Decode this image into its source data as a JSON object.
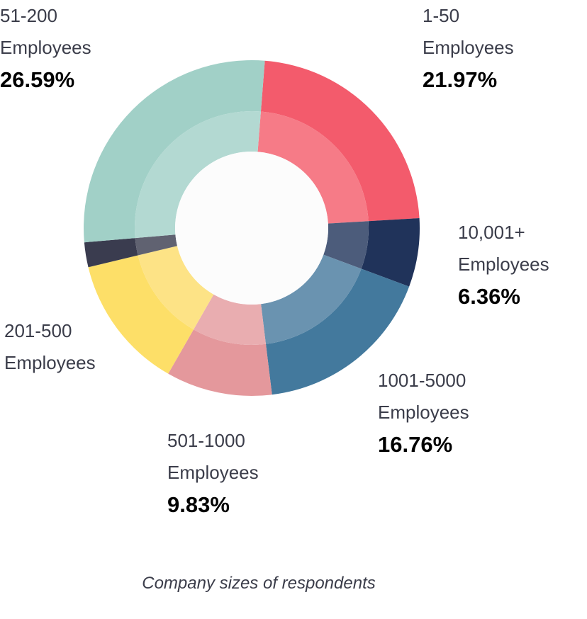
{
  "chart_data": {
    "type": "pie",
    "title": "",
    "caption": "Company sizes of respondents",
    "slices": [
      {
        "name": "1-50",
        "unit": "Employees",
        "value": 21.97,
        "label": "21.97%",
        "color": "#f35b6c",
        "inner_color": "#f67b87"
      },
      {
        "name": "10,001+",
        "unit": "Employees",
        "value": 6.36,
        "label": "6.36%",
        "color": "#20335a",
        "inner_color": "#4c5c7b"
      },
      {
        "name": "1001-5000",
        "unit": "Employees",
        "value": 16.76,
        "label": "16.76%",
        "color": "#43799d",
        "inner_color": "#6a93b0"
      },
      {
        "name": "501-1000",
        "unit": "Employees",
        "value": 9.83,
        "label": "9.83%",
        "color": "#e4989c",
        "inner_color": "#e9adb0"
      },
      {
        "name": "201-500",
        "unit": "Employees",
        "value": 12.5,
        "label": "",
        "color": "#fddf68",
        "inner_color": "#fde386"
      },
      {
        "name": "",
        "unit": "",
        "value": 2.3,
        "label": "",
        "color": "#3a3c4f",
        "inner_color": "#606271"
      },
      {
        "name": "51-200",
        "unit": "Employees",
        "value": 26.59,
        "label": "26.59%",
        "color": "#a1d0c7",
        "inner_color": "#b3d9d2"
      }
    ]
  }
}
